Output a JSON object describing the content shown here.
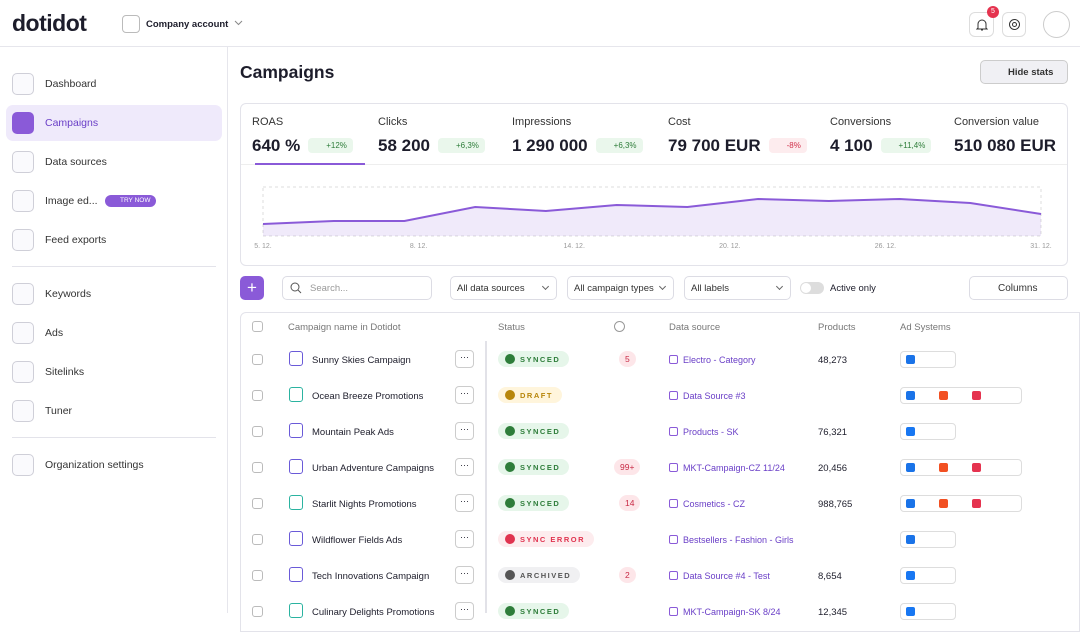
{
  "header": {
    "logo": "dotidot",
    "account": "Company account",
    "notification_count": "5"
  },
  "sidebar": {
    "items": [
      "Dashboard",
      "Campaigns",
      "Data sources",
      "Image ed...",
      "Feed exports",
      "Keywords",
      "Ads",
      "Sitelinks",
      "Tuner",
      "Organization settings"
    ],
    "badge": "TRY NOW"
  },
  "page": {
    "title": "Campaigns",
    "hide_stats": "Hide stats"
  },
  "stats": [
    {
      "label": "ROAS",
      "value": "640 %",
      "change": "+12%"
    },
    {
      "label": "Clicks",
      "value": "58 200",
      "change": "+6,3%"
    },
    {
      "label": "Impressions",
      "value": "1 290 000",
      "change": "+6,3%"
    },
    {
      "label": "Cost",
      "value": "79 700 EUR",
      "change": "-8%"
    },
    {
      "label": "Conversions",
      "value": "4 100",
      "change": "+11,4%"
    },
    {
      "label": "Conversion value",
      "value": "510 080 EUR"
    }
  ],
  "chart": {
    "x_labels": [
      "5. 12.",
      "8. 12.",
      "14. 12.",
      "20. 12.",
      "26. 12.",
      "31. 12."
    ],
    "values": [
      12,
      15,
      15,
      29,
      25,
      31,
      29,
      37,
      35,
      37,
      33,
      22
    ]
  },
  "toolbar": {
    "search": "Search...",
    "filters": [
      "All data sources",
      "All campaign types",
      "All labels"
    ],
    "toggle": "Active only",
    "columns": "Columns"
  },
  "table": {
    "headers": [
      "Campaign name in Dotidot",
      "Status",
      "Data source",
      "Products",
      "Ad Systems"
    ],
    "rows": [
      [
        "Sunny Skies Campaign",
        "SYNCED",
        "5",
        "Electro - Category",
        "48,273"
      ],
      [
        "Ocean Breeze Promotions",
        "DRAFT",
        null,
        "Data Source #3",
        null
      ],
      [
        "Mountain Peak Ads",
        "SYNCED",
        null,
        "Products - SK",
        "76,321"
      ],
      [
        "Urban Adventure Campaigns",
        "SYNCED",
        "99+",
        "MKT-Campaign-CZ 11/24",
        "20,456"
      ],
      [
        "Starlit Nights Promotions",
        "SYNCED",
        "14",
        "Cosmetics - CZ",
        "988,765"
      ],
      [
        "Wildflower Fields Ads",
        "SYNC ERROR",
        null,
        "Bestsellers - Fashion - Girls",
        null
      ],
      [
        "Tech Innovations Campaign",
        "ARCHIVED",
        "2",
        "Data Source #4 - Test",
        "8,654"
      ],
      [
        "Culinary Delights Promotions",
        "SYNCED",
        null,
        "MKT-Campaign-SK 8/24",
        "12,345"
      ]
    ]
  }
}
